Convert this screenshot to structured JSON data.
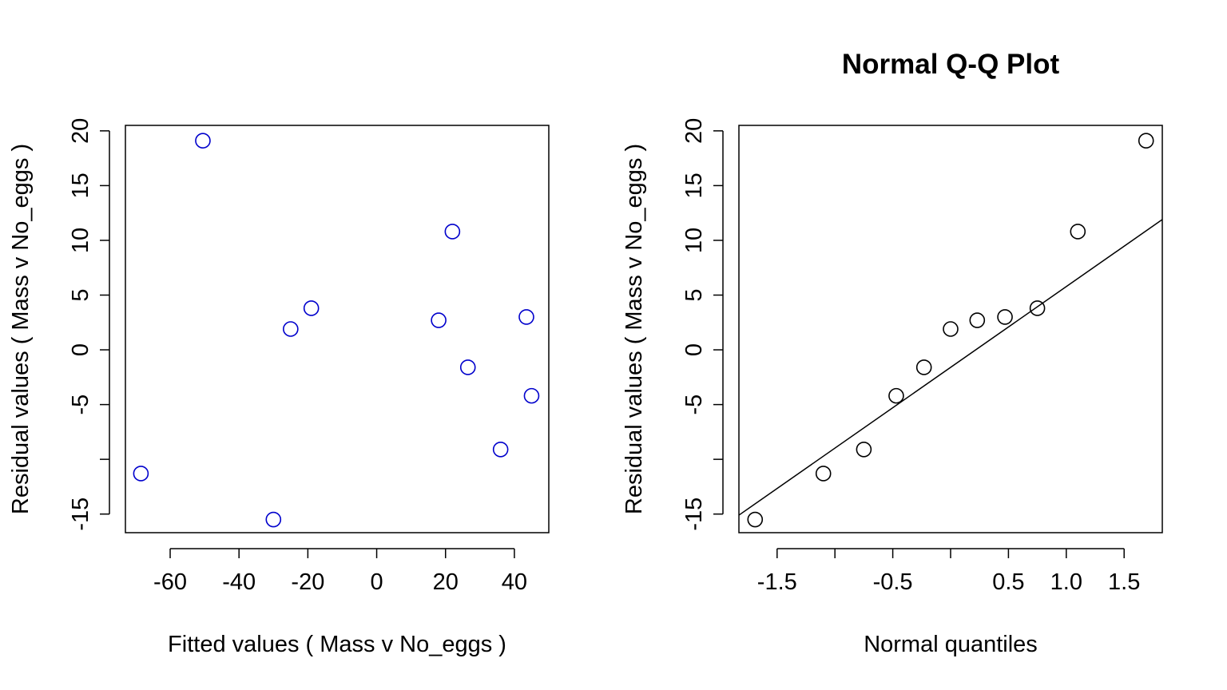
{
  "chart_data": [
    {
      "type": "scatter",
      "title": "",
      "xlabel": "Fitted values ( Mass  v  No_eggs )",
      "ylabel": "Residual values ( Mass  v  No_eggs )",
      "xlim": [
        -73,
        50
      ],
      "ylim": [
        -16.7,
        20.5
      ],
      "xticks": [
        -60,
        -40,
        -20,
        0,
        20,
        40
      ],
      "xtick_labels": [
        "-60",
        "-40",
        "-20",
        "0",
        "20",
        "40"
      ],
      "yticks": [
        -15,
        -10,
        -5,
        0,
        5,
        10,
        15,
        20
      ],
      "ytick_labels": [
        "-15",
        "",
        "-5",
        "0",
        "5",
        "10",
        "15",
        "20"
      ],
      "grid": false,
      "point_color": "#0000cc",
      "series": [
        {
          "x": [
            -68.5,
            -50.5,
            -30,
            -25,
            -19,
            18,
            22,
            26.5,
            36,
            43.5,
            45
          ],
          "y": [
            -11.3,
            19.1,
            -15.5,
            1.9,
            3.8,
            2.7,
            10.8,
            -1.6,
            -9.1,
            3.0,
            -4.2
          ]
        }
      ]
    },
    {
      "type": "scatter",
      "title": "Normal Q-Q Plot",
      "xlabel": "Normal quantiles",
      "ylabel": "Residual values ( Mass  v  No_eggs )",
      "xlim": [
        -1.83,
        1.83
      ],
      "ylim": [
        -16.7,
        20.5
      ],
      "xticks": [
        -1.5,
        -1.0,
        -0.5,
        0,
        0.5,
        1.0,
        1.5
      ],
      "xtick_labels": [
        "-1.5",
        "",
        "-0.5",
        "",
        "0.5",
        "1.0",
        "1.5"
      ],
      "yticks": [
        -15,
        -10,
        -5,
        0,
        5,
        10,
        15,
        20
      ],
      "ytick_labels": [
        "-15",
        "",
        "-5",
        "0",
        "5",
        "10",
        "15",
        "20"
      ],
      "grid": false,
      "point_color": "#000000",
      "series": [
        {
          "x": [
            -1.69,
            -1.1,
            -0.75,
            -0.47,
            -0.23,
            0.0,
            0.23,
            0.47,
            0.75,
            1.1,
            1.69
          ],
          "y": [
            -15.5,
            -11.3,
            -9.1,
            -4.2,
            -1.6,
            1.9,
            2.7,
            3.0,
            3.8,
            10.8,
            19.1
          ]
        }
      ],
      "reference_line": {
        "x": [
          -1.83,
          1.83
        ],
        "y": [
          -15.1,
          11.9
        ]
      }
    }
  ]
}
